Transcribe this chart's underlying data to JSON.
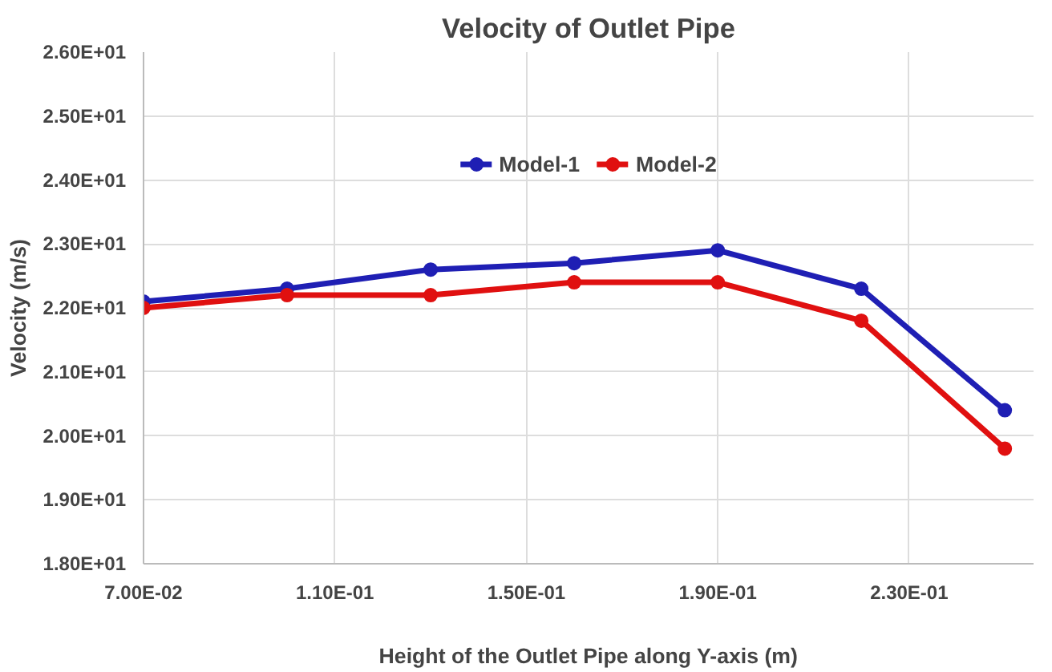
{
  "chart_data": {
    "type": "line",
    "title": "Velocity of Outlet Pipe",
    "xlabel": "Height of the Outlet Pipe along Y-axis (m)",
    "ylabel": "Velocity (m/s)",
    "x": [
      0.07,
      0.1,
      0.13,
      0.16,
      0.19,
      0.22,
      0.25
    ],
    "series": [
      {
        "name": "Model-1",
        "color": "#1f1fb4",
        "values": [
          22.1,
          22.3,
          22.6,
          22.7,
          22.9,
          22.3,
          20.4
        ]
      },
      {
        "name": "Model-2",
        "color": "#e01010",
        "values": [
          22.0,
          22.2,
          22.2,
          22.4,
          22.4,
          21.8,
          19.8
        ]
      }
    ],
    "xlim": [
      0.07,
      0.256
    ],
    "ylim": [
      18,
      26
    ],
    "xticks": [
      {
        "value": 0.07,
        "label": "7.00E-02"
      },
      {
        "value": 0.11,
        "label": "1.10E-01"
      },
      {
        "value": 0.15,
        "label": "1.50E-01"
      },
      {
        "value": 0.19,
        "label": "1.90E-01"
      },
      {
        "value": 0.23,
        "label": "2.30E-01"
      }
    ],
    "yticks": [
      {
        "value": 18,
        "label": "1.80E+01"
      },
      {
        "value": 19,
        "label": "1.90E+01"
      },
      {
        "value": 20,
        "label": "2.00E+01"
      },
      {
        "value": 21,
        "label": "2.10E+01"
      },
      {
        "value": 22,
        "label": "2.20E+01"
      },
      {
        "value": 23,
        "label": "2.30E+01"
      },
      {
        "value": 24,
        "label": "2.40E+01"
      },
      {
        "value": 25,
        "label": "2.50E+01"
      },
      {
        "value": 26,
        "label": "2.60E+01"
      }
    ],
    "grid": true,
    "legend": "top",
    "marker": "circle",
    "line_style": "solid"
  }
}
